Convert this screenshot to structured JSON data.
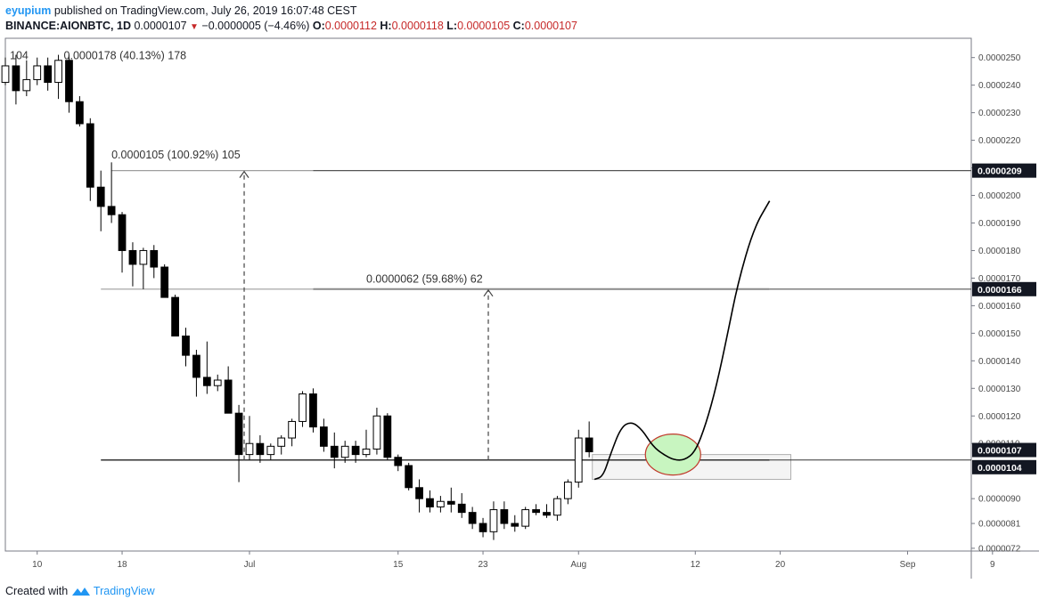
{
  "header": {
    "username": "eyupium",
    "published_text": "published on TradingView.com, July 26, 2019 16:07:48 CEST",
    "symbol": "BINANCE:AIONBTC, 1D",
    "last": "0.0000107",
    "change_arrow": "▼",
    "change": "−0.0000005 (−4.46%)",
    "o_label": "O:",
    "o_value": "0.0000112",
    "h_label": "H:",
    "h_value": "0.0000118",
    "l_label": "L:",
    "l_value": "0.0000105",
    "c_label": "C:",
    "c_value": "0.0000107"
  },
  "footer": {
    "created_with": "Created with",
    "brand": "TradingView"
  },
  "chart_data": {
    "type": "candlestick",
    "y_axis_ticks": [
      "0.0000072",
      "0.0000081",
      "0.0000090",
      "0.0000110",
      "0.0000120",
      "0.0000130",
      "0.0000140",
      "0.0000150",
      "0.0000160",
      "0.0000170",
      "0.0000180",
      "0.0000190",
      "0.0000200",
      "0.0000210",
      "0.0000220",
      "0.0000230",
      "0.0000240",
      "0.0000250"
    ],
    "ylim": [
      7.1e-06,
      2.57e-05
    ],
    "x_axis_ticks": [
      {
        "label": "10",
        "day": 10
      },
      {
        "label": "18",
        "day": 18
      },
      {
        "label": "Jul",
        "day": 30
      },
      {
        "label": "15",
        "day": 44
      },
      {
        "label": "23",
        "day": 52
      },
      {
        "label": "Aug",
        "day": 61
      },
      {
        "label": "12",
        "day": 72
      },
      {
        "label": "20",
        "day": 80
      },
      {
        "label": "Sep",
        "day": 92
      },
      {
        "label": "9",
        "day": 100
      }
    ],
    "candles": [
      {
        "day": 2,
        "o": 2.5e-05,
        "h": 2.56e-05,
        "l": 2.41e-05,
        "c": 2.48e-05
      },
      {
        "day": 3,
        "o": 2.48e-05,
        "h": 2.55e-05,
        "l": 2.44e-05,
        "c": 2.51e-05
      },
      {
        "day": 4,
        "o": 2.51e-05,
        "h": 2.54e-05,
        "l": 2.36e-05,
        "c": 2.39e-05
      },
      {
        "day": 5,
        "o": 2.39e-05,
        "h": 2.46e-05,
        "l": 2.37e-05,
        "c": 2.44e-05
      },
      {
        "day": 6,
        "o": 2.44e-05,
        "h": 2.58e-05,
        "l": 2.38e-05,
        "c": 2.41e-05
      },
      {
        "day": 7,
        "o": 2.41e-05,
        "h": 2.5e-05,
        "l": 2.4e-05,
        "c": 2.47e-05
      },
      {
        "day": 8,
        "o": 2.47e-05,
        "h": 2.51e-05,
        "l": 2.33e-05,
        "c": 2.38e-05
      },
      {
        "day": 9,
        "o": 2.38e-05,
        "h": 2.49e-05,
        "l": 2.36e-05,
        "c": 2.42e-05
      },
      {
        "day": 10,
        "o": 2.42e-05,
        "h": 2.5e-05,
        "l": 2.4e-05,
        "c": 2.47e-05
      },
      {
        "day": 11,
        "o": 2.47e-05,
        "h": 2.5e-05,
        "l": 2.38e-05,
        "c": 2.41e-05
      },
      {
        "day": 12,
        "o": 2.41e-05,
        "h": 2.51e-05,
        "l": 2.35e-05,
        "c": 2.49e-05
      },
      {
        "day": 13,
        "o": 2.49e-05,
        "h": 2.51e-05,
        "l": 2.3e-05,
        "c": 2.34e-05
      },
      {
        "day": 14,
        "o": 2.34e-05,
        "h": 2.36e-05,
        "l": 2.25e-05,
        "c": 2.26e-05
      },
      {
        "day": 15,
        "o": 2.26e-05,
        "h": 2.28e-05,
        "l": 1.98e-05,
        "c": 2.03e-05
      },
      {
        "day": 16,
        "o": 2.03e-05,
        "h": 2.09e-05,
        "l": 1.87e-05,
        "c": 1.96e-05
      },
      {
        "day": 17,
        "o": 1.96e-05,
        "h": 2.12e-05,
        "l": 1.9e-05,
        "c": 1.93e-05
      },
      {
        "day": 18,
        "o": 1.93e-05,
        "h": 1.94e-05,
        "l": 1.72e-05,
        "c": 1.8e-05
      },
      {
        "day": 19,
        "o": 1.8e-05,
        "h": 1.83e-05,
        "l": 1.67e-05,
        "c": 1.75e-05
      },
      {
        "day": 20,
        "o": 1.75e-05,
        "h": 1.81e-05,
        "l": 1.66e-05,
        "c": 1.8e-05
      },
      {
        "day": 21,
        "o": 1.8e-05,
        "h": 1.82e-05,
        "l": 1.7e-05,
        "c": 1.74e-05
      },
      {
        "day": 22,
        "o": 1.74e-05,
        "h": 1.75e-05,
        "l": 1.63e-05,
        "c": 1.63e-05
      },
      {
        "day": 23,
        "o": 1.63e-05,
        "h": 1.64e-05,
        "l": 1.49e-05,
        "c": 1.49e-05
      },
      {
        "day": 24,
        "o": 1.49e-05,
        "h": 1.52e-05,
        "l": 1.38e-05,
        "c": 1.42e-05
      },
      {
        "day": 25,
        "o": 1.42e-05,
        "h": 1.44e-05,
        "l": 1.27e-05,
        "c": 1.34e-05
      },
      {
        "day": 26,
        "o": 1.34e-05,
        "h": 1.47e-05,
        "l": 1.28e-05,
        "c": 1.31e-05
      },
      {
        "day": 27,
        "o": 1.31e-05,
        "h": 1.35e-05,
        "l": 1.29e-05,
        "c": 1.33e-05
      },
      {
        "day": 28,
        "o": 1.33e-05,
        "h": 1.38e-05,
        "l": 1.21e-05,
        "c": 1.21e-05
      },
      {
        "day": 29,
        "o": 1.21e-05,
        "h": 1.24e-05,
        "l": 9.6e-06,
        "c": 1.06e-05
      },
      {
        "day": 30,
        "o": 1.06e-05,
        "h": 1.2e-05,
        "l": 1.04e-05,
        "c": 1.1e-05
      },
      {
        "day": 31,
        "o": 1.1e-05,
        "h": 1.13e-05,
        "l": 1.03e-05,
        "c": 1.06e-05
      },
      {
        "day": 32,
        "o": 1.06e-05,
        "h": 1.1e-05,
        "l": 1.04e-05,
        "c": 1.09e-05
      },
      {
        "day": 33,
        "o": 1.09e-05,
        "h": 1.13e-05,
        "l": 1.06e-05,
        "c": 1.12e-05
      },
      {
        "day": 34,
        "o": 1.12e-05,
        "h": 1.19e-05,
        "l": 1.09e-05,
        "c": 1.18e-05
      },
      {
        "day": 35,
        "o": 1.18e-05,
        "h": 1.29e-05,
        "l": 1.16e-05,
        "c": 1.28e-05
      },
      {
        "day": 36,
        "o": 1.28e-05,
        "h": 1.3e-05,
        "l": 1.14e-05,
        "c": 1.16e-05
      },
      {
        "day": 37,
        "o": 1.16e-05,
        "h": 1.19e-05,
        "l": 1.07e-05,
        "c": 1.09e-05
      },
      {
        "day": 38,
        "o": 1.09e-05,
        "h": 1.14e-05,
        "l": 1.01e-05,
        "c": 1.05e-05
      },
      {
        "day": 39,
        "o": 1.05e-05,
        "h": 1.11e-05,
        "l": 1.03e-05,
        "c": 1.09e-05
      },
      {
        "day": 40,
        "o": 1.09e-05,
        "h": 1.11e-05,
        "l": 1.03e-05,
        "c": 1.06e-05
      },
      {
        "day": 41,
        "o": 1.06e-05,
        "h": 1.15e-05,
        "l": 1.05e-05,
        "c": 1.08e-05
      },
      {
        "day": 42,
        "o": 1.08e-05,
        "h": 1.23e-05,
        "l": 1.06e-05,
        "c": 1.2e-05
      },
      {
        "day": 43,
        "o": 1.2e-05,
        "h": 1.21e-05,
        "l": 1.04e-05,
        "c": 1.05e-05
      },
      {
        "day": 44,
        "o": 1.05e-05,
        "h": 1.06e-05,
        "l": 1e-05,
        "c": 1.02e-05
      },
      {
        "day": 45,
        "o": 1.02e-05,
        "h": 1.03e-05,
        "l": 9.3e-06,
        "c": 9.4e-06
      },
      {
        "day": 46,
        "o": 9.4e-06,
        "h": 9.7e-06,
        "l": 8.5e-06,
        "c": 9e-06
      },
      {
        "day": 47,
        "o": 9e-06,
        "h": 9.3e-06,
        "l": 8.5e-06,
        "c": 8.7e-06
      },
      {
        "day": 48,
        "o": 8.7e-06,
        "h": 9.1e-06,
        "l": 8.5e-06,
        "c": 8.9e-06
      },
      {
        "day": 49,
        "o": 8.9e-06,
        "h": 9.4e-06,
        "l": 8.5e-06,
        "c": 8.8e-06
      },
      {
        "day": 50,
        "o": 8.8e-06,
        "h": 9.2e-06,
        "l": 8.3e-06,
        "c": 8.5e-06
      },
      {
        "day": 51,
        "o": 8.5e-06,
        "h": 8.7e-06,
        "l": 7.9e-06,
        "c": 8.1e-06
      },
      {
        "day": 52,
        "o": 8.1e-06,
        "h": 8.3e-06,
        "l": 7.6e-06,
        "c": 7.8e-06
      },
      {
        "day": 53,
        "o": 7.8e-06,
        "h": 8.9e-06,
        "l": 7.5e-06,
        "c": 8.6e-06
      },
      {
        "day": 54,
        "o": 8.6e-06,
        "h": 8.9e-06,
        "l": 7.9e-06,
        "c": 8.1e-06
      },
      {
        "day": 55,
        "o": 8.1e-06,
        "h": 8.4e-06,
        "l": 7.8e-06,
        "c": 8e-06
      },
      {
        "day": 56,
        "o": 8e-06,
        "h": 8.7e-06,
        "l": 7.9e-06,
        "c": 8.6e-06
      },
      {
        "day": 57,
        "o": 8.6e-06,
        "h": 8.8e-06,
        "l": 8.4e-06,
        "c": 8.5e-06
      },
      {
        "day": 58,
        "o": 8.5e-06,
        "h": 8.8e-06,
        "l": 8.3e-06,
        "c": 8.4e-06
      },
      {
        "day": 59,
        "o": 8.4e-06,
        "h": 9.1e-06,
        "l": 8.2e-06,
        "c": 9e-06
      },
      {
        "day": 60,
        "o": 9e-06,
        "h": 9.7e-06,
        "l": 8.8e-06,
        "c": 9.6e-06
      },
      {
        "day": 61,
        "o": 9.6e-06,
        "h": 1.15e-05,
        "l": 9.4e-06,
        "c": 1.12e-05
      },
      {
        "day": 62,
        "o": 1.12e-05,
        "h": 1.18e-05,
        "l": 1.05e-05,
        "c": 1.07e-05
      }
    ],
    "horizontal_lines": [
      2.09e-05,
      1.66e-05,
      1.04e-05
    ],
    "price_labels": [
      "0.0000209",
      "0.0000166",
      "0.0000107",
      "0.0000104"
    ],
    "annotations": [
      {
        "text": "0.0000178 (40.13%) 178",
        "prefix": "104",
        "day": 12.5,
        "price": 2.51e-05
      },
      {
        "text": "0.0000105 (100.92%) 105",
        "day": 17,
        "price": 2.15e-05
      },
      {
        "text": "0.0000062 (59.68%) 62",
        "day": 41,
        "price": 1.7e-05
      }
    ],
    "measure_arrows": [
      {
        "day": 29.5,
        "from": 1.04e-05,
        "to": 2.09e-05
      },
      {
        "day": 52.5,
        "from": 1.04e-05,
        "to": 1.66e-05
      }
    ],
    "projection_path": [
      [
        62.5,
        9.7e-06
      ],
      [
        63.3,
        9.8e-06
      ],
      [
        64.0,
        1.06e-05
      ],
      [
        65.0,
        1.16e-05
      ],
      [
        66.0,
        1.18e-05
      ],
      [
        67.0,
        1.15e-05
      ],
      [
        68.0,
        1.09e-05
      ],
      [
        69.0,
        1.06e-05
      ],
      [
        70.0,
        1.04e-05
      ],
      [
        71.0,
        1.04e-05
      ],
      [
        72.0,
        1.07e-05
      ],
      [
        73.0,
        1.17e-05
      ],
      [
        74.0,
        1.31e-05
      ],
      [
        75.0,
        1.49e-05
      ],
      [
        76.0,
        1.68e-05
      ],
      [
        77.5,
        1.88e-05
      ],
      [
        79.0,
        1.98e-05
      ]
    ],
    "colors": {
      "bear": "#000000",
      "bull": "#ffffff",
      "outline": "#000000",
      "ellipse_fill": "#c8f5c0",
      "ellipse_stroke": "#c0392b"
    }
  }
}
